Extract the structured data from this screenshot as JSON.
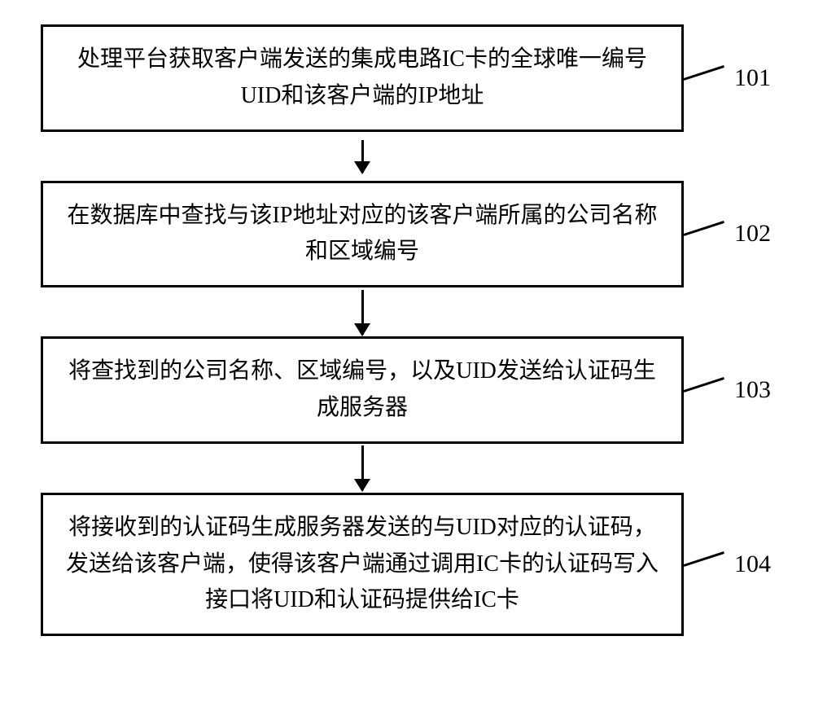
{
  "flowchart": {
    "type": "flowchart",
    "background_color": "#ffffff",
    "box_border_color": "#000000",
    "box_border_width": 3,
    "text_color": "#000000",
    "font_size": 28,
    "label_font_size": 30,
    "arrow_color": "#000000",
    "steps": [
      {
        "text": "处理平台获取客户端发送的集成电路IC卡的全球唯一编号UID和该客户端的IP地址",
        "label": "101"
      },
      {
        "text": "在数据库中查找与该IP地址对应的该客户端所属的公司名称和区域编号",
        "label": "102"
      },
      {
        "text": "将查找到的公司名称、区域编号，以及UID发送给认证码生成服务器",
        "label": "103"
      },
      {
        "text": "将接收到的认证码生成服务器发送的与UID对应的认证码，发送给该客户端，使得该客户端通过调用IC卡的认证码写入接口将UID和认证码提供给IC卡",
        "label": "104"
      }
    ]
  }
}
